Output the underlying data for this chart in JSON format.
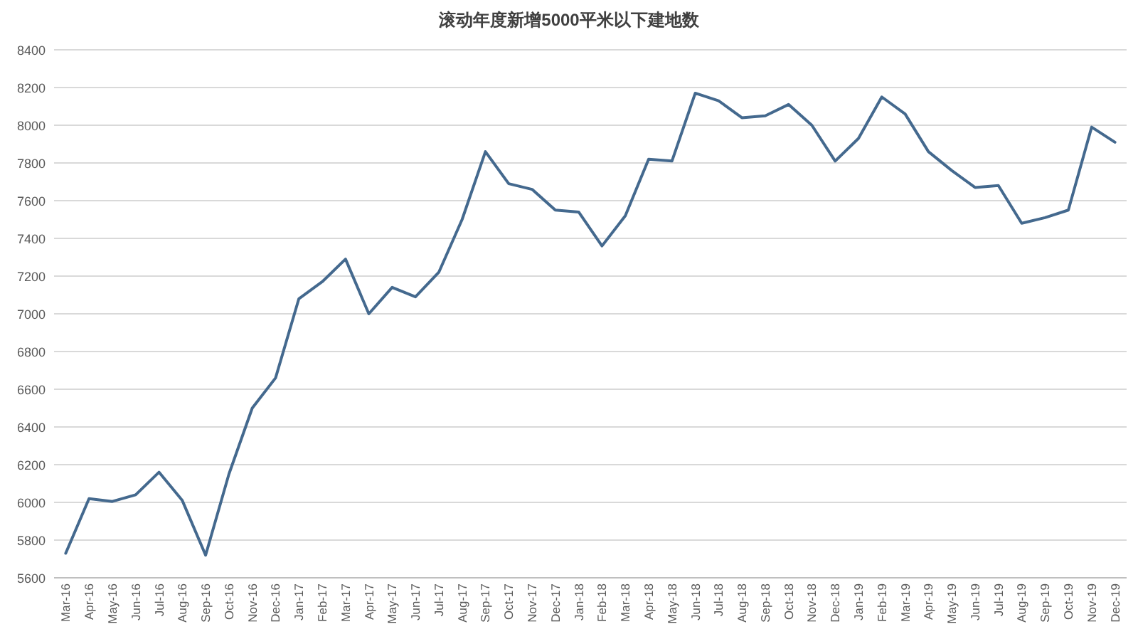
{
  "chart_data": {
    "type": "line",
    "title": "滚动年度新增5000平米以下建地数",
    "categories": [
      "Mar-16",
      "Apr-16",
      "May-16",
      "Jun-16",
      "Jul-16",
      "Aug-16",
      "Sep-16",
      "Oct-16",
      "Nov-16",
      "Dec-16",
      "Jan-17",
      "Feb-17",
      "Mar-17",
      "Apr-17",
      "May-17",
      "Jun-17",
      "Jul-17",
      "Aug-17",
      "Sep-17",
      "Oct-17",
      "Nov-17",
      "Dec-17",
      "Jan-18",
      "Feb-18",
      "Mar-18",
      "Apr-18",
      "May-18",
      "Jun-18",
      "Jul-18",
      "Aug-18",
      "Sep-18",
      "Oct-18",
      "Nov-18",
      "Dec-18",
      "Jan-19",
      "Feb-19",
      "Mar-19",
      "Apr-19",
      "May-19",
      "Jun-19",
      "Jul-19",
      "Aug-19",
      "Sep-19",
      "Oct-19",
      "Nov-19",
      "Dec-19"
    ],
    "series": [
      {
        "color": "#44698e",
        "values": [
          5730,
          6020,
          6005,
          6040,
          6160,
          6010,
          5720,
          6150,
          6500,
          6660,
          7080,
          7170,
          7290,
          7000,
          7140,
          7090,
          7220,
          7500,
          7860,
          7690,
          7660,
          7550,
          7540,
          7360,
          7520,
          7820,
          7810,
          8170,
          8130,
          8040,
          8050,
          8110,
          8000,
          7810,
          7930,
          8150,
          8060,
          7860,
          7760,
          7670,
          7680,
          7480,
          7510,
          7550,
          7990,
          7910
        ]
      }
    ],
    "ylim": [
      5600,
      8400
    ],
    "yticks": [
      5600,
      5800,
      6000,
      6200,
      6400,
      6600,
      6800,
      7000,
      7200,
      7400,
      7600,
      7800,
      8000,
      8200,
      8400
    ],
    "grid": "y",
    "marker": "none",
    "line_style": "solid"
  }
}
